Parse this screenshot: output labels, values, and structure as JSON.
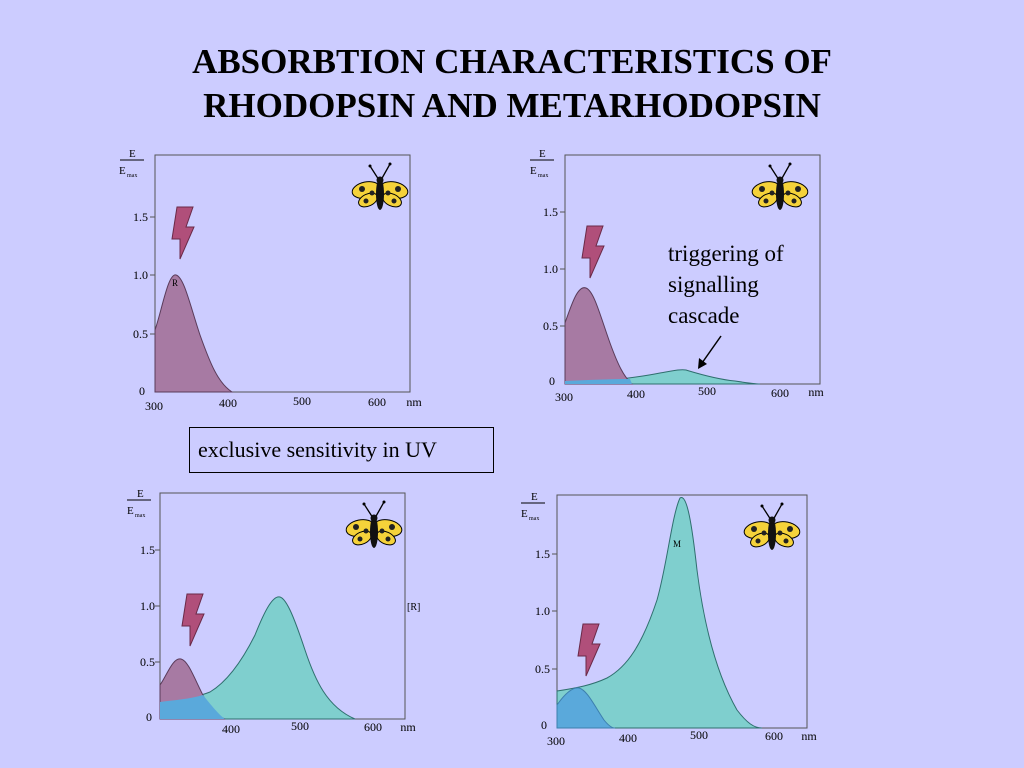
{
  "slide": {
    "title_line1": "ABSORBTION CHARACTERISTICS OF",
    "title_line2": "RHODOPSIN AND METARHODOPSIN",
    "annotation_lines": [
      "triggering of",
      "signalling",
      "cascade"
    ],
    "callout": "exclusive sensitivity in UV"
  },
  "axis": {
    "ylabel_top": "E",
    "ylabel_bottom": "E",
    "ylabel_sub": "max",
    "unit": "nm",
    "tick_300": "300",
    "tick_400": "400",
    "tick_500": "500",
    "tick_600": "600",
    "tick_0": "0",
    "tick_05": "0.5",
    "tick_10": "1.0",
    "tick_15": "1.5"
  },
  "panels": [
    {
      "curve_label": "R"
    },
    {
      "curve_label": ""
    },
    {
      "curve_label": "[R]"
    },
    {
      "curve_label": "M"
    }
  ],
  "colors": {
    "background": "#ccccff",
    "rhodopsin_fill": "#a77aa3",
    "metarhodopsin_fill": "#7fcfce",
    "overlap_fill": "#5aa9db",
    "flash": "#b04f7a"
  },
  "icons": {
    "moth": "moth-icon",
    "flash": "lightning-icon"
  }
}
